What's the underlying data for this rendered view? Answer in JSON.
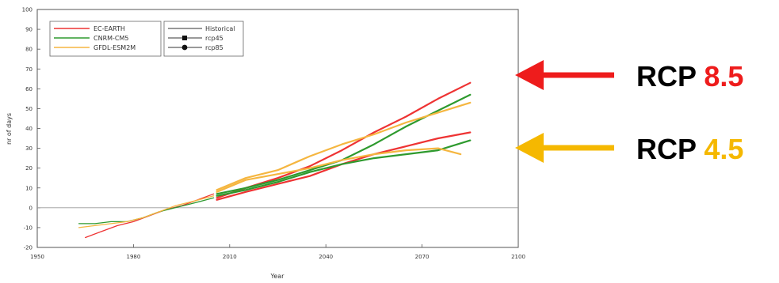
{
  "chart_data": {
    "type": "line",
    "title": "",
    "xlabel": "Year",
    "ylabel": "nr of days",
    "xlim": [
      1950,
      2100
    ],
    "ylim": [
      -20,
      100
    ],
    "x_ticks": [
      "1950",
      "1980",
      "2010",
      "2040",
      "2070",
      "2100"
    ],
    "y_ticks": [
      "100",
      "90",
      "80",
      "70",
      "60",
      "50",
      "40",
      "30",
      "20",
      "10",
      "0",
      "-10",
      "-20"
    ],
    "grid": false,
    "zero_line": 0,
    "legend": {
      "placement": "top-left",
      "models": [
        {
          "name": "EC-EARTH",
          "color": "#ee3333"
        },
        {
          "name": "CNRM-CM5",
          "color": "#2e9a2e"
        },
        {
          "name": "GFDL-ESM2M",
          "color": "#f5b640"
        }
      ],
      "scenarios": [
        "Historical",
        "rcp45",
        "rcp85"
      ]
    },
    "series": [
      {
        "model": "EC-EARTH",
        "scenario": "Historical",
        "color": "#ee3333",
        "x": [
          1965,
          1970,
          1975,
          1980,
          1985,
          1990,
          1995,
          2000,
          2005
        ],
        "y": [
          -15,
          -12,
          -9,
          -7,
          -4,
          -1,
          1,
          4,
          7
        ]
      },
      {
        "model": "CNRM-CM5",
        "scenario": "Historical",
        "color": "#2e9a2e",
        "x": [
          1963,
          1968,
          1973,
          1978,
          1983,
          1988,
          1993,
          1998,
          2005
        ],
        "y": [
          -8,
          -8,
          -7,
          -7,
          -5,
          -2,
          0,
          2,
          5
        ]
      },
      {
        "model": "GFDL-ESM2M",
        "scenario": "Historical",
        "color": "#f5b640",
        "x": [
          1963,
          1968,
          1973,
          1978,
          1983,
          1988,
          1993,
          1998,
          2005
        ],
        "y": [
          -10,
          -9,
          -8,
          -7,
          -5,
          -2,
          1,
          3,
          6
        ]
      },
      {
        "model": "EC-EARTH",
        "scenario": "rcp45",
        "color": "#ee3333",
        "x": [
          2006,
          2015,
          2025,
          2035,
          2045,
          2055,
          2065,
          2075,
          2085
        ],
        "y": [
          4,
          8,
          12,
          16,
          22,
          27,
          31,
          35,
          38
        ]
      },
      {
        "model": "EC-EARTH",
        "scenario": "rcp85",
        "color": "#ee3333",
        "x": [
          2006,
          2015,
          2025,
          2035,
          2045,
          2055,
          2065,
          2075,
          2085
        ],
        "y": [
          5,
          10,
          15,
          21,
          29,
          38,
          46,
          55,
          63
        ]
      },
      {
        "model": "CNRM-CM5",
        "scenario": "rcp45",
        "color": "#2e9a2e",
        "x": [
          2006,
          2015,
          2025,
          2035,
          2045,
          2055,
          2065,
          2075,
          2085
        ],
        "y": [
          6,
          9,
          13,
          18,
          22,
          25,
          27,
          29,
          34
        ]
      },
      {
        "model": "CNRM-CM5",
        "scenario": "rcp85",
        "color": "#2e9a2e",
        "x": [
          2006,
          2015,
          2025,
          2035,
          2045,
          2055,
          2065,
          2075,
          2085
        ],
        "y": [
          7,
          10,
          14,
          19,
          24,
          32,
          41,
          49,
          57
        ]
      },
      {
        "model": "GFDL-ESM2M",
        "scenario": "rcp45",
        "color": "#f5b640",
        "x": [
          2006,
          2015,
          2025,
          2035,
          2045,
          2055,
          2065,
          2075,
          2082
        ],
        "y": [
          8,
          14,
          17,
          20,
          24,
          27,
          29,
          30,
          27
        ]
      },
      {
        "model": "GFDL-ESM2M",
        "scenario": "rcp85",
        "color": "#f5b640",
        "x": [
          2006,
          2015,
          2025,
          2035,
          2045,
          2055,
          2065,
          2075,
          2085
        ],
        "y": [
          9,
          15,
          19,
          26,
          32,
          37,
          43,
          48,
          53
        ]
      }
    ]
  },
  "annotations": [
    {
      "prefix": "RCP ",
      "value": "8.5",
      "color": "#ee1c1c",
      "prefix_color": "#000000",
      "arrow_color": "#ee1c1c"
    },
    {
      "prefix": "RCP ",
      "value": "4.5",
      "color": "#f5b800",
      "prefix_color": "#000000",
      "arrow_color": "#f5b800"
    }
  ]
}
